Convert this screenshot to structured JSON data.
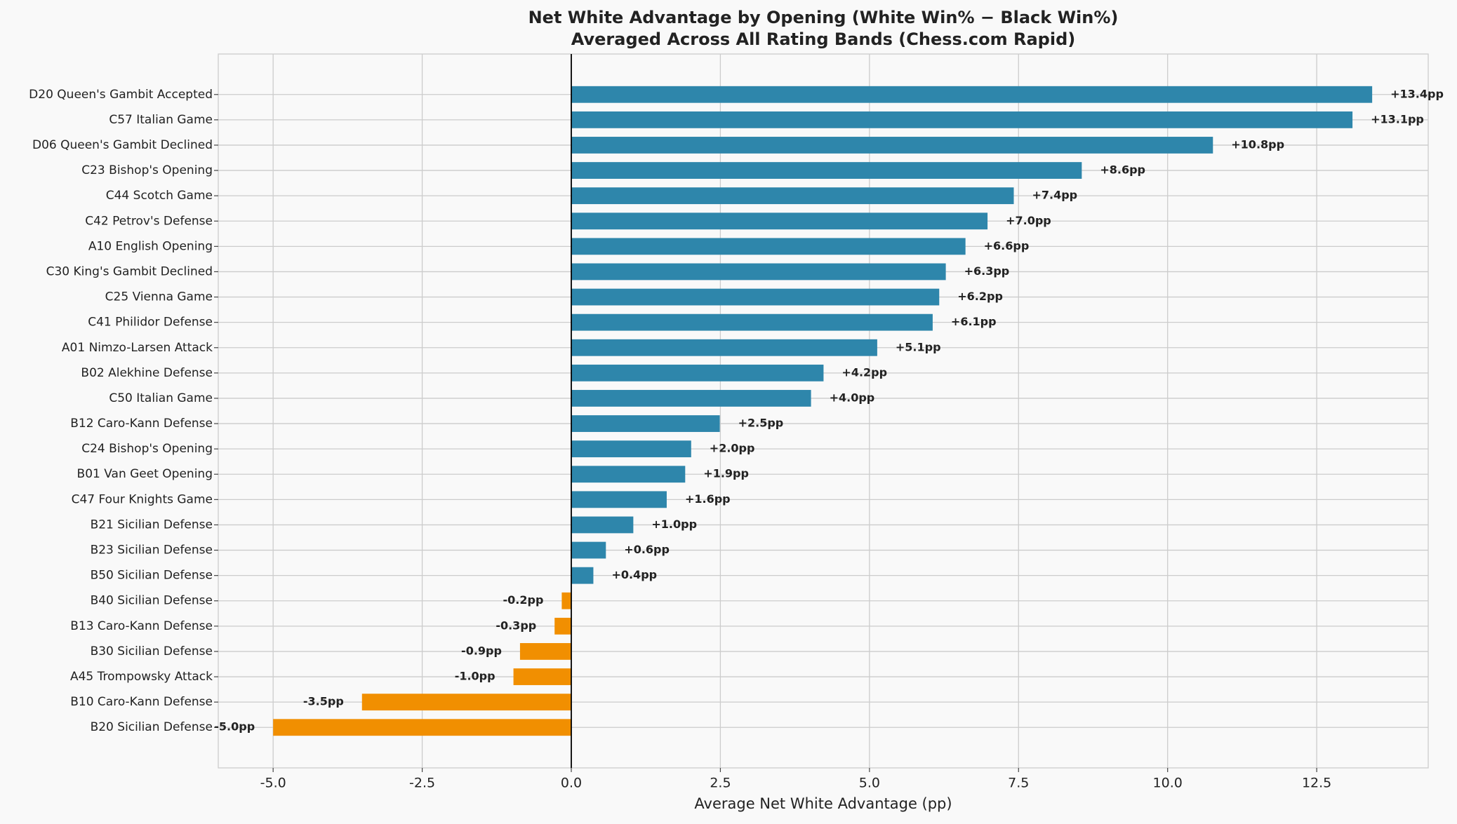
{
  "chart_data": {
    "type": "barh",
    "title": "Net White Advantage by Opening (White Win% − Black Win%)",
    "subtitle": "Averaged Across All Rating Bands (Chess.com Rapid)",
    "x_label": "Average Net White Advantage (pp)",
    "categories": [
      "D20 Queen's Gambit Accepted",
      "C57 Italian Game",
      "D06 Queen's Gambit Declined",
      "C23 Bishop's Opening",
      "C44 Scotch Game",
      "C42 Petrov's Defense",
      "A10 English Opening",
      "C30 King's Gambit Declined",
      "C25 Vienna Game",
      "C41 Philidor Defense",
      "A01 Nimzo-Larsen Attack",
      "B02 Alekhine Defense",
      "C50 Italian Game",
      "B12 Caro-Kann Defense",
      "C24 Bishop's Opening",
      "B01 Van Geet Opening",
      "C47 Four Knights Game",
      "B21 Sicilian Defense",
      "B23 Sicilian Defense",
      "B50 Sicilian Defense",
      "B40 Sicilian Defense",
      "B13 Caro-Kann Defense",
      "B30 Sicilian Defense",
      "A45 Trompowsky Attack",
      "B10 Caro-Kann Defense",
      "B20 Sicilian Defense"
    ],
    "values": [
      13.43,
      13.1,
      10.76,
      8.56,
      7.42,
      6.98,
      6.61,
      6.28,
      6.17,
      6.06,
      5.13,
      4.23,
      4.02,
      2.49,
      2.01,
      1.91,
      1.6,
      1.04,
      0.58,
      0.37,
      -0.16,
      -0.28,
      -0.86,
      -0.97,
      -3.51,
      -5.0
    ],
    "value_labels": [
      "+13.4pp",
      "+13.1pp",
      "+10.8pp",
      "+8.6pp",
      "+7.4pp",
      "+7.0pp",
      "+6.6pp",
      "+6.3pp",
      "+6.2pp",
      "+6.1pp",
      "+5.1pp",
      "+4.2pp",
      "+4.0pp",
      "+2.5pp",
      "+2.0pp",
      "+1.9pp",
      "+1.6pp",
      "+1.0pp",
      "+0.6pp",
      "+0.4pp",
      "-0.2pp",
      "-0.3pp",
      "-0.9pp",
      "-1.0pp",
      "-3.5pp",
      "-5.0pp"
    ],
    "color": "#2e86ab",
    "negative_color": "#f18f01",
    "xlim": [
      -5.92,
      14.37
    ],
    "xticks": [
      {
        "value": -5,
        "label": "-5.0"
      },
      -2.5,
      {
        "value": 0,
        "label": "0.0"
      },
      2.5,
      {
        "value": 5,
        "label": "5.0"
      },
      7.5,
      {
        "value": 10,
        "label": "10.0"
      },
      12.5
    ],
    "grid": true
  }
}
